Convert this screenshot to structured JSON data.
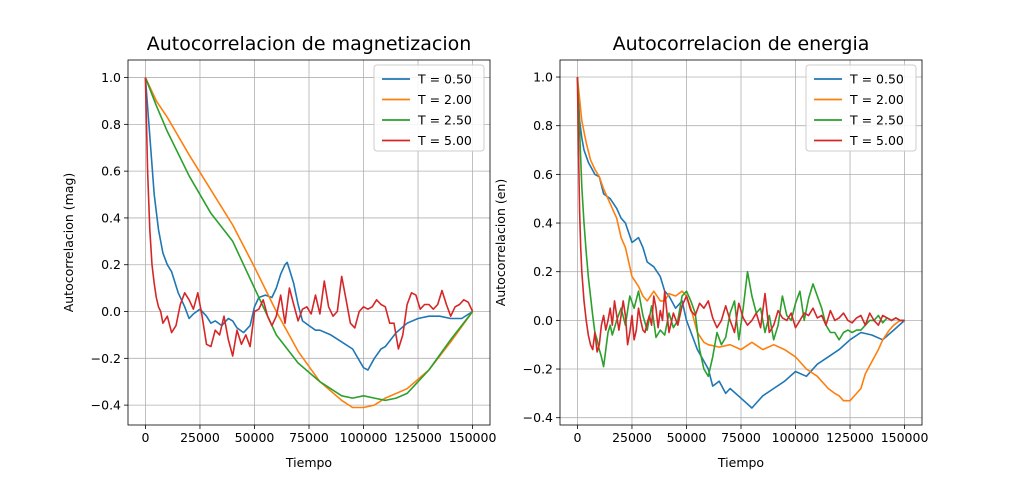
{
  "chart_data": [
    {
      "type": "line",
      "title": "Autocorrelacion de magnetizacion",
      "xlabel": "Tiempo",
      "ylabel": "Autocorrelacion (mag)",
      "xlim": [
        -8000,
        158000
      ],
      "ylim": [
        -0.485,
        1.075
      ],
      "xticks": [
        0,
        25000,
        50000,
        75000,
        100000,
        125000,
        150000
      ],
      "yticks": [
        -0.4,
        -0.2,
        0.0,
        0.2,
        0.4,
        0.6,
        0.8,
        1.0
      ],
      "xtick_labels": [
        "0",
        "25000",
        "50000",
        "75000",
        "100000",
        "125000",
        "150000"
      ],
      "ytick_labels": [
        "−0.4",
        "−0.2",
        "0.0",
        "0.2",
        "0.4",
        "0.6",
        "0.8",
        "1.0"
      ],
      "grid": true,
      "legend_position": "top-right",
      "series": [
        {
          "name": "T = 0.50",
          "color": "#1f77b4",
          "x": [
            0,
            2000,
            4000,
            6000,
            8000,
            10000,
            12000,
            15000,
            18000,
            20000,
            22000,
            25000,
            28000,
            30000,
            32000,
            35000,
            38000,
            40000,
            42000,
            45000,
            48000,
            50000,
            52000,
            55000,
            58000,
            60000,
            62000,
            64000,
            65000,
            66000,
            68000,
            70000,
            72000,
            75000,
            78000,
            80000,
            85000,
            90000,
            95000,
            100000,
            102000,
            105000,
            108000,
            110000,
            115000,
            120000,
            125000,
            130000,
            135000,
            140000,
            145000,
            150000
          ],
          "y": [
            1.0,
            0.75,
            0.5,
            0.35,
            0.25,
            0.2,
            0.17,
            0.08,
            0.02,
            -0.03,
            -0.01,
            0.01,
            -0.02,
            -0.05,
            -0.04,
            -0.06,
            -0.03,
            -0.04,
            -0.07,
            -0.09,
            -0.06,
            0.02,
            0.06,
            0.07,
            0.06,
            0.1,
            0.16,
            0.2,
            0.21,
            0.18,
            0.12,
            0.03,
            -0.04,
            -0.06,
            -0.08,
            -0.08,
            -0.1,
            -0.13,
            -0.16,
            -0.24,
            -0.25,
            -0.2,
            -0.16,
            -0.15,
            -0.09,
            -0.05,
            -0.03,
            -0.02,
            -0.02,
            -0.03,
            -0.03,
            0.0
          ]
        },
        {
          "name": "T = 2.00",
          "color": "#ff7f0e",
          "x": [
            0,
            5000,
            10000,
            20000,
            30000,
            40000,
            50000,
            60000,
            70000,
            80000,
            90000,
            95000,
            100000,
            105000,
            110000,
            120000,
            130000,
            140000,
            150000
          ],
          "y": [
            1.0,
            0.9,
            0.83,
            0.67,
            0.52,
            0.37,
            0.19,
            0.0,
            -0.17,
            -0.3,
            -0.38,
            -0.41,
            -0.41,
            -0.4,
            -0.37,
            -0.33,
            -0.25,
            -0.13,
            0.0
          ]
        },
        {
          "name": "T = 2.50",
          "color": "#2ca02c",
          "x": [
            0,
            5000,
            10000,
            20000,
            30000,
            40000,
            45000,
            50000,
            60000,
            70000,
            80000,
            90000,
            95000,
            100000,
            105000,
            110000,
            115000,
            120000,
            130000,
            140000,
            150000
          ],
          "y": [
            1.0,
            0.88,
            0.77,
            0.58,
            0.42,
            0.3,
            0.2,
            0.1,
            -0.1,
            -0.22,
            -0.3,
            -0.36,
            -0.37,
            -0.36,
            -0.37,
            -0.38,
            -0.37,
            -0.35,
            -0.25,
            -0.12,
            0.0
          ]
        },
        {
          "name": "T = 5.00",
          "color": "#d62728",
          "x": [
            0,
            1000,
            2000,
            3000,
            4000,
            5000,
            6000,
            7000,
            8000,
            10000,
            12000,
            14000,
            16000,
            18000,
            20000,
            22000,
            24000,
            26000,
            28000,
            30000,
            32000,
            34000,
            36000,
            38000,
            40000,
            42000,
            44000,
            46000,
            48000,
            50000,
            52000,
            54000,
            56000,
            58000,
            60000,
            62000,
            64000,
            66000,
            68000,
            70000,
            72000,
            74000,
            76000,
            78000,
            80000,
            82000,
            84000,
            86000,
            88000,
            90000,
            92000,
            94000,
            96000,
            98000,
            100000,
            102000,
            104000,
            106000,
            108000,
            110000,
            112000,
            114000,
            116000,
            118000,
            120000,
            122000,
            124000,
            126000,
            128000,
            130000,
            132000,
            134000,
            136000,
            138000,
            140000,
            142000,
            144000,
            146000,
            148000,
            150000
          ],
          "y": [
            1.0,
            0.6,
            0.35,
            0.2,
            0.12,
            0.06,
            0.02,
            0.0,
            -0.05,
            -0.02,
            -0.09,
            -0.06,
            0.03,
            0.08,
            0.05,
            0.01,
            0.08,
            -0.02,
            -0.14,
            -0.15,
            -0.08,
            -0.1,
            -0.02,
            -0.12,
            -0.19,
            -0.08,
            -0.14,
            -0.1,
            -0.15,
            0.0,
            0.01,
            0.05,
            -0.02,
            -0.06,
            -0.02,
            0.07,
            -0.05,
            0.1,
            0.03,
            -0.04,
            0.01,
            0.02,
            -0.01,
            0.07,
            -0.01,
            0.13,
            0.02,
            -0.02,
            0.0,
            0.15,
            0.05,
            -0.05,
            -0.07,
            0.0,
            0.02,
            0.01,
            0.02,
            0.05,
            0.03,
            0.02,
            -0.05,
            -0.05,
            -0.16,
            -0.1,
            0.03,
            0.08,
            0.07,
            0.01,
            0.03,
            0.03,
            0.01,
            0.03,
            0.09,
            0.03,
            -0.02,
            0.02,
            0.03,
            0.05,
            0.04,
            0.0
          ]
        }
      ]
    },
    {
      "type": "line",
      "title": "Autocorrelacion de energia",
      "xlabel": "Tiempo",
      "ylabel": "Autocorrelacion (en)",
      "xlim": [
        -8000,
        158000
      ],
      "ylim": [
        -0.43,
        1.07
      ],
      "xticks": [
        0,
        25000,
        50000,
        75000,
        100000,
        125000,
        150000
      ],
      "yticks": [
        -0.4,
        -0.2,
        0.0,
        0.2,
        0.4,
        0.6,
        0.8,
        1.0
      ],
      "xtick_labels": [
        "0",
        "25000",
        "50000",
        "75000",
        "100000",
        "125000",
        "150000"
      ],
      "ytick_labels": [
        "−0.4",
        "−0.2",
        "0.0",
        "0.2",
        "0.4",
        "0.6",
        "0.8",
        "1.0"
      ],
      "grid": true,
      "legend_position": "top-right",
      "series": [
        {
          "name": "T = 0.50",
          "color": "#1f77b4",
          "x": [
            0,
            1000,
            2000,
            3000,
            5000,
            8000,
            10000,
            12000,
            15000,
            18000,
            20000,
            22000,
            25000,
            28000,
            30000,
            32000,
            35000,
            38000,
            40000,
            42000,
            45000,
            48000,
            50000,
            55000,
            60000,
            62000,
            65000,
            68000,
            70000,
            75000,
            80000,
            85000,
            90000,
            95000,
            100000,
            105000,
            110000,
            115000,
            120000,
            125000,
            130000,
            135000,
            140000,
            145000,
            150000
          ],
          "y": [
            1.0,
            0.82,
            0.75,
            0.7,
            0.65,
            0.6,
            0.59,
            0.52,
            0.5,
            0.46,
            0.42,
            0.4,
            0.32,
            0.34,
            0.3,
            0.24,
            0.22,
            0.18,
            0.12,
            0.1,
            0.05,
            0.08,
            0.0,
            -0.12,
            -0.2,
            -0.27,
            -0.25,
            -0.3,
            -0.28,
            -0.32,
            -0.36,
            -0.31,
            -0.28,
            -0.25,
            -0.21,
            -0.23,
            -0.18,
            -0.15,
            -0.12,
            -0.08,
            -0.05,
            -0.06,
            -0.08,
            -0.04,
            0.0
          ]
        },
        {
          "name": "T = 2.00",
          "color": "#ff7f0e",
          "x": [
            0,
            2000,
            4000,
            6000,
            8000,
            10000,
            12000,
            14000,
            16000,
            18000,
            20000,
            22000,
            25000,
            28000,
            30000,
            32000,
            35000,
            38000,
            40000,
            42000,
            45000,
            48000,
            50000,
            52000,
            55000,
            58000,
            60000,
            65000,
            70000,
            75000,
            80000,
            85000,
            90000,
            95000,
            100000,
            105000,
            110000,
            115000,
            118000,
            120000,
            122000,
            125000,
            128000,
            130000,
            132000,
            135000,
            138000,
            140000,
            143000,
            145000,
            148000,
            150000
          ],
          "y": [
            1.0,
            0.82,
            0.73,
            0.66,
            0.62,
            0.59,
            0.54,
            0.5,
            0.46,
            0.42,
            0.34,
            0.3,
            0.18,
            0.14,
            0.1,
            0.08,
            0.12,
            0.08,
            0.08,
            0.11,
            0.1,
            0.12,
            0.1,
            0.05,
            -0.05,
            -0.09,
            -0.1,
            -0.11,
            -0.1,
            -0.12,
            -0.09,
            -0.12,
            -0.1,
            -0.12,
            -0.15,
            -0.2,
            -0.23,
            -0.28,
            -0.3,
            -0.31,
            -0.33,
            -0.33,
            -0.3,
            -0.28,
            -0.22,
            -0.17,
            -0.12,
            -0.08,
            -0.04,
            -0.02,
            0.0,
            0.0
          ]
        },
        {
          "name": "T = 2.50",
          "color": "#2ca02c",
          "x": [
            0,
            1000,
            2000,
            3000,
            4000,
            5000,
            6000,
            7000,
            8000,
            9000,
            10000,
            11000,
            12000,
            13000,
            14000,
            15000,
            16000,
            18000,
            20000,
            22000,
            24000,
            26000,
            28000,
            30000,
            32000,
            34000,
            36000,
            38000,
            40000,
            42000,
            44000,
            46000,
            48000,
            50000,
            52000,
            54000,
            56000,
            58000,
            60000,
            62000,
            64000,
            66000,
            68000,
            70000,
            72000,
            74000,
            76000,
            78000,
            80000,
            82000,
            84000,
            86000,
            88000,
            90000,
            92000,
            94000,
            96000,
            98000,
            100000,
            102000,
            104000,
            106000,
            108000,
            110000,
            112000,
            114000,
            116000,
            118000,
            120000,
            122000,
            124000,
            126000,
            128000,
            130000,
            132000,
            134000,
            136000,
            138000,
            140000,
            142000,
            144000,
            146000,
            148000,
            150000
          ],
          "y": [
            1.0,
            0.78,
            0.55,
            0.4,
            0.28,
            0.18,
            0.1,
            0.02,
            -0.05,
            -0.08,
            -0.12,
            -0.15,
            -0.19,
            -0.12,
            -0.05,
            -0.02,
            -0.06,
            0.0,
            0.05,
            -0.02,
            0.1,
            0.05,
            0.12,
            0.02,
            -0.04,
            0.06,
            -0.07,
            -0.04,
            -0.06,
            0.03,
            -0.03,
            0.0,
            0.1,
            0.12,
            0.08,
            0.03,
            -0.12,
            -0.2,
            -0.23,
            -0.15,
            -0.05,
            -0.1,
            -0.07,
            0.03,
            0.08,
            -0.08,
            0.05,
            0.2,
            0.1,
            0.03,
            0.05,
            -0.05,
            0.02,
            -0.08,
            -0.02,
            0.1,
            0.02,
            0.0,
            0.07,
            0.12,
            0.0,
            0.09,
            0.15,
            0.1,
            0.05,
            -0.02,
            -0.05,
            -0.05,
            -0.08,
            -0.05,
            -0.04,
            -0.05,
            -0.04,
            -0.04,
            -0.02,
            0.0,
            0.0,
            0.02,
            -0.01,
            0.01,
            0.0,
            0.01,
            0.0,
            0.0
          ]
        },
        {
          "name": "T = 5.00",
          "color": "#d62728",
          "x": [
            0,
            500,
            1000,
            1500,
            2000,
            3000,
            4000,
            5000,
            6000,
            7000,
            8000,
            9000,
            10000,
            11000,
            12000,
            13000,
            14000,
            15000,
            16000,
            17000,
            18000,
            19000,
            20000,
            21000,
            22000,
            23000,
            24000,
            25000,
            26000,
            27000,
            28000,
            29000,
            30000,
            31000,
            32000,
            33000,
            34000,
            35000,
            36000,
            37000,
            38000,
            39000,
            40000,
            42000,
            44000,
            46000,
            48000,
            50000,
            52000,
            54000,
            56000,
            58000,
            60000,
            62000,
            64000,
            66000,
            68000,
            70000,
            72000,
            74000,
            76000,
            78000,
            80000,
            82000,
            84000,
            86000,
            88000,
            90000,
            92000,
            94000,
            96000,
            98000,
            100000,
            102000,
            104000,
            106000,
            108000,
            110000,
            112000,
            114000,
            116000,
            118000,
            120000,
            122000,
            124000,
            126000,
            128000,
            130000,
            132000,
            134000,
            136000,
            138000,
            140000,
            142000,
            144000,
            146000,
            148000,
            150000
          ],
          "y": [
            1.0,
            0.7,
            0.45,
            0.3,
            0.2,
            0.08,
            0.0,
            -0.06,
            -0.1,
            -0.12,
            -0.05,
            -0.13,
            -0.1,
            -0.02,
            0.02,
            -0.04,
            0.0,
            0.05,
            -0.02,
            0.08,
            0.02,
            -0.04,
            0.02,
            0.08,
            0.02,
            -0.1,
            -0.05,
            0.02,
            -0.08,
            -0.04,
            0.05,
            0.0,
            -0.04,
            -0.05,
            -0.01,
            0.02,
            -0.02,
            0.1,
            0.05,
            -0.03,
            0.04,
            0.0,
            0.12,
            -0.05,
            0.03,
            -0.02,
            0.06,
            0.1,
            0.04,
            0.02,
            0.07,
            0.05,
            0.08,
            0.01,
            -0.03,
            0.0,
            0.06,
            0.0,
            -0.05,
            0.07,
            0.01,
            -0.02,
            0.0,
            0.03,
            -0.03,
            0.11,
            -0.05,
            -0.02,
            0.04,
            0.01,
            0.0,
            0.03,
            -0.03,
            0.0,
            0.03,
            0.02,
            0.05,
            0.01,
            0.02,
            -0.02,
            0.04,
            0.0,
            0.01,
            0.03,
            0.0,
            -0.01,
            0.01,
            0.02,
            -0.02,
            0.03,
            0.0,
            -0.02,
            0.02,
            0.01,
            0.0,
            0.01,
            0.0,
            0.0
          ]
        }
      ]
    }
  ]
}
